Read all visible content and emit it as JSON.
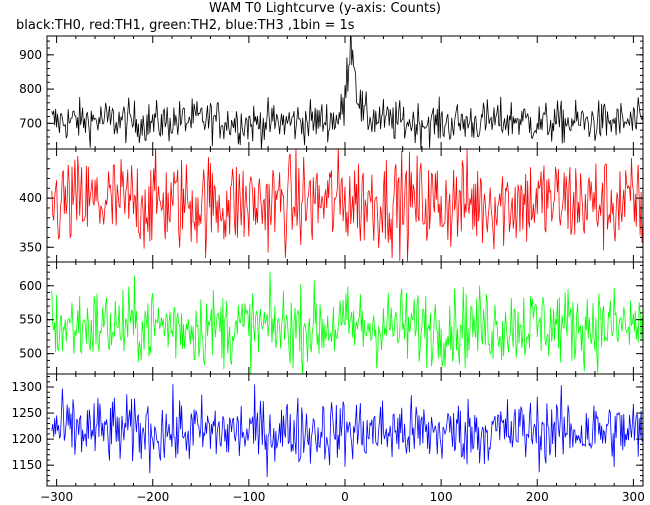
{
  "chart_data": {
    "type": "line",
    "title": "WAM T0 Lightcurve (y-axis: Counts)",
    "subtitle": "black:TH0, red:TH1, green:TH2, blue:TH3 ,1bin = 1s",
    "xlim": [
      -310,
      310
    ],
    "x_ticks": [
      -300,
      -200,
      -100,
      0,
      100,
      200,
      300
    ],
    "grid": false,
    "panels": [
      {
        "name": "TH0",
        "color": "#000000",
        "ylim": [
          625,
          955
        ],
        "y_ticks": [
          700,
          800,
          900
        ],
        "summary": "baseline ~700 counts with noise to ~820; burst peak ~950 near t = 5 s",
        "x": [
          -300,
          -250,
          -200,
          -150,
          -100,
          -50,
          -20,
          -5,
          0,
          3,
          5,
          8,
          10,
          15,
          20,
          50,
          100,
          150,
          180,
          200,
          250,
          300
        ],
        "y": [
          705,
          710,
          702,
          712,
          700,
          705,
          708,
          718,
          760,
          860,
          950,
          940,
          860,
          760,
          720,
          705,
          700,
          706,
          712,
          700,
          704,
          702
        ]
      },
      {
        "name": "TH1",
        "color": "#ff0000",
        "ylim": [
          335,
          450
        ],
        "y_ticks": [
          350,
          400
        ],
        "summary": "~395 counts, range ~340-450",
        "x": [
          -300,
          -200,
          -100,
          0,
          100,
          200,
          300
        ],
        "y": [
          395,
          396,
          394,
          398,
          395,
          397,
          394
        ]
      },
      {
        "name": "TH2",
        "color": "#00ff00",
        "ylim": [
          470,
          635
        ],
        "y_ticks": [
          500,
          550,
          600
        ],
        "summary": "~540 counts, range ~475-625",
        "x": [
          -300,
          -200,
          -100,
          0,
          100,
          200,
          300
        ],
        "y": [
          540,
          542,
          538,
          541,
          539,
          543,
          540
        ]
      },
      {
        "name": "TH3",
        "color": "#0000ff",
        "ylim": [
          1110,
          1325
        ],
        "y_ticks": [
          1150,
          1200,
          1250,
          1300
        ],
        "summary": "~1215 counts, range ~1140-1310",
        "x": [
          -300,
          -200,
          -100,
          0,
          100,
          200,
          300
        ],
        "y": [
          1218,
          1215,
          1214,
          1216,
          1213,
          1217,
          1214
        ]
      }
    ]
  }
}
